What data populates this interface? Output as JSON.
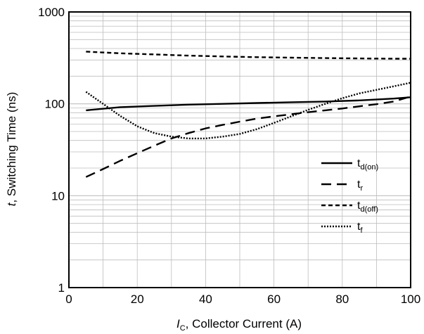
{
  "chart_data": {
    "type": "line",
    "xlabel_var": "I",
    "xlabel_sub": "C",
    "xlabel_rest": ", Collector Current (A)",
    "ylabel_var": "t",
    "ylabel_rest": ", Switching Time (ns)",
    "xlim": [
      0,
      100
    ],
    "ylim": [
      1,
      1000
    ],
    "yscale": "log",
    "grid": true,
    "legend_position": "lower-right",
    "x_ticks": [
      "0",
      "20",
      "40",
      "60",
      "80",
      "100"
    ],
    "y_ticks": [
      "1",
      "10",
      "100",
      "1000"
    ],
    "series": [
      {
        "name": "t",
        "name_sub": "d(on)",
        "dash": "solid",
        "x": [
          5,
          15,
          25,
          35,
          45,
          55,
          65,
          75,
          85,
          95,
          100
        ],
        "y": [
          85,
          92,
          95,
          98,
          100,
          102,
          104,
          106,
          109,
          114,
          118
        ]
      },
      {
        "name": "t",
        "name_sub": "r",
        "dash": "long-dash",
        "x": [
          5,
          10,
          15,
          20,
          25,
          30,
          35,
          40,
          45,
          50,
          55,
          60,
          65,
          70,
          75,
          80,
          85,
          90,
          95,
          100
        ],
        "y": [
          16,
          19.5,
          24,
          29,
          35,
          42,
          48,
          54,
          59,
          64,
          69,
          73,
          77,
          81,
          85,
          89,
          94,
          99,
          106,
          120
        ]
      },
      {
        "name": "t",
        "name_sub": "d(off)",
        "dash": "short-dash",
        "x": [
          5,
          15,
          25,
          35,
          45,
          55,
          65,
          75,
          85,
          95,
          100
        ],
        "y": [
          370,
          355,
          345,
          335,
          328,
          322,
          318,
          315,
          312,
          310,
          310
        ]
      },
      {
        "name": "t",
        "name_sub": "f",
        "dash": "dotted",
        "x": [
          5,
          10,
          15,
          20,
          25,
          30,
          35,
          40,
          45,
          50,
          55,
          60,
          65,
          70,
          75,
          80,
          85,
          90,
          95,
          100
        ],
        "y": [
          135,
          100,
          74,
          57,
          48,
          44,
          42,
          42,
          44,
          47,
          53,
          62,
          73,
          86,
          100,
          115,
          130,
          142,
          155,
          170
        ]
      }
    ]
  }
}
